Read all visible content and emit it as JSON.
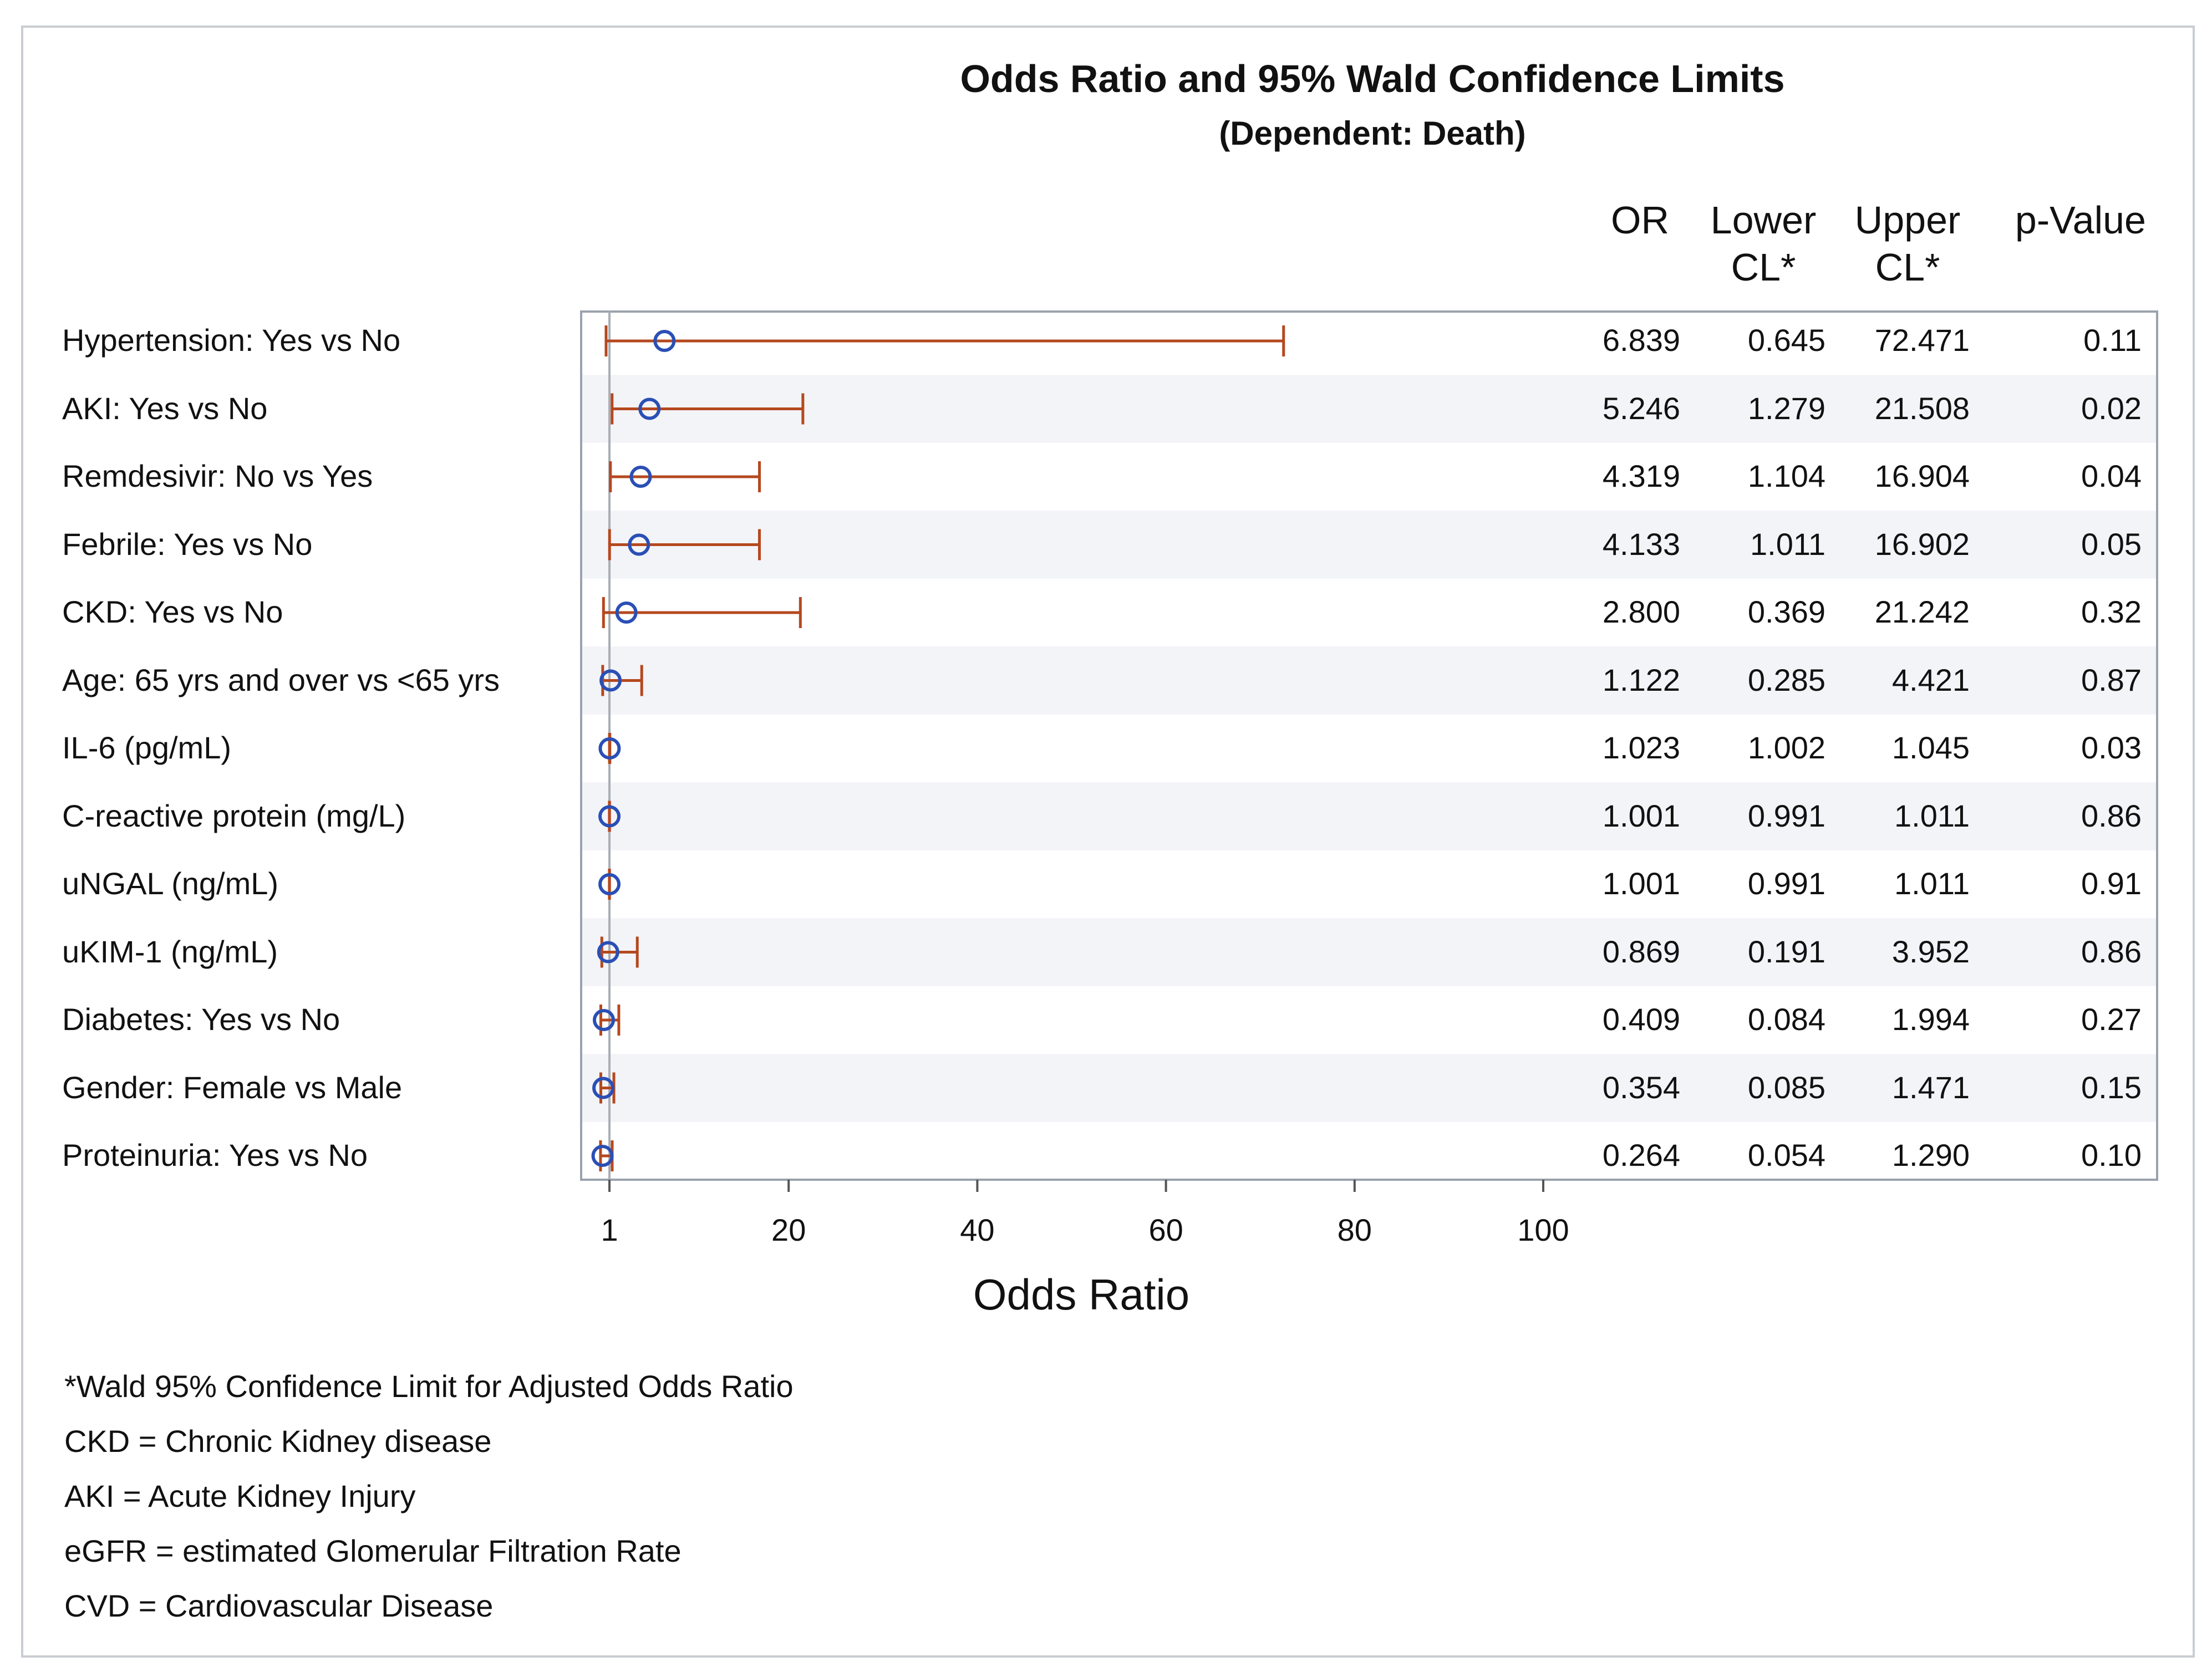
{
  "chart_data": {
    "type": "forest",
    "title": "Odds Ratio and 95% Wald Confidence Limits",
    "subtitle": "(Dependent: Death)",
    "xlabel": "Odds Ratio",
    "xlim": [
      -2,
      101
    ],
    "xticks": [
      1,
      20,
      40,
      60,
      80,
      100
    ],
    "columns": [
      "OR",
      "Lower CL*",
      "Upper CL*",
      "p-Value"
    ],
    "column_headers": [
      {
        "line1": "",
        "line2": "OR"
      },
      {
        "line1": "Lower",
        "line2": "CL*"
      },
      {
        "line1": "Upper",
        "line2": "CL*"
      },
      {
        "line1": "",
        "line2": "p-Value"
      }
    ],
    "reference_line": 1,
    "rows": [
      {
        "label": "Hypertension: Yes vs No",
        "or": "6.839",
        "lower": "0.645",
        "upper": "72.471",
        "p": "0.11"
      },
      {
        "label": "AKI: Yes vs No",
        "or": "5.246",
        "lower": "1.279",
        "upper": "21.508",
        "p": "0.02"
      },
      {
        "label": "Remdesivir: No vs Yes",
        "or": "4.319",
        "lower": "1.104",
        "upper": "16.904",
        "p": "0.04"
      },
      {
        "label": "Febrile: Yes vs No",
        "or": "4.133",
        "lower": "1.011",
        "upper": "16.902",
        "p": "0.05"
      },
      {
        "label": "CKD: Yes vs No",
        "or": "2.800",
        "lower": "0.369",
        "upper": "21.242",
        "p": "0.32"
      },
      {
        "label": "Age: 65 yrs and over vs <65 yrs",
        "or": "1.122",
        "lower": "0.285",
        "upper": "4.421",
        "p": "0.87"
      },
      {
        "label": "IL-6 (pg/mL)",
        "or": "1.023",
        "lower": "1.002",
        "upper": "1.045",
        "p": "0.03"
      },
      {
        "label": "C-reactive protein (mg/L)",
        "or": "1.001",
        "lower": "0.991",
        "upper": "1.011",
        "p": "0.86"
      },
      {
        "label": "uNGAL (ng/mL)",
        "or": "1.001",
        "lower": "0.991",
        "upper": "1.011",
        "p": "0.91"
      },
      {
        "label": "uKIM-1 (ng/mL)",
        "or": "0.869",
        "lower": "0.191",
        "upper": "3.952",
        "p": "0.86"
      },
      {
        "label": "Diabetes: Yes vs No",
        "or": "0.409",
        "lower": "0.084",
        "upper": "1.994",
        "p": "0.27"
      },
      {
        "label": "Gender: Female vs Male",
        "or": "0.354",
        "lower": "0.085",
        "upper": "1.471",
        "p": "0.15"
      },
      {
        "label": "Proteinuria: Yes vs No",
        "or": "0.264",
        "lower": "0.054",
        "upper": "1.290",
        "p": "0.10"
      }
    ],
    "footnotes": [
      "*Wald  95% Confidence Limit for Adjusted Odds Ratio",
      "CKD = Chronic Kidney disease",
      "AKI = Acute Kidney Injury",
      "eGFR = estimated Glomerular Filtration Rate",
      "CVD = Cardiovascular Disease"
    ],
    "colors": {
      "marker": "#2a4fb5",
      "ci": "#b5481f",
      "band": "#f3f4f8",
      "refline": "#a9aeb5",
      "frame": "#9aa2ad"
    }
  }
}
